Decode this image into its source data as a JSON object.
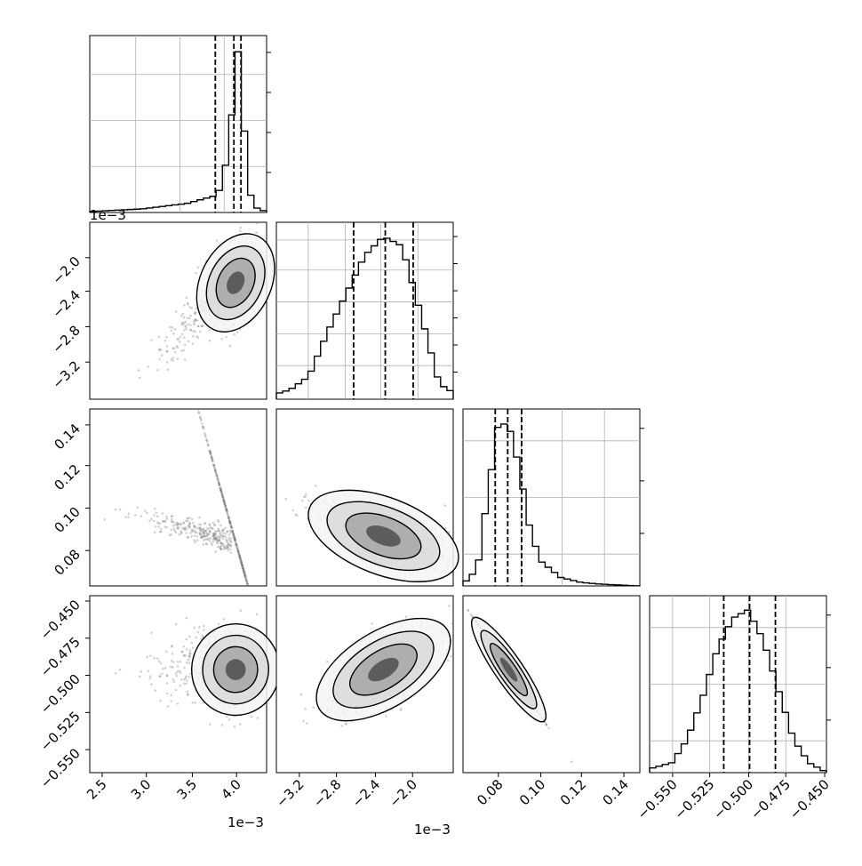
{
  "figure": {
    "type": "corner",
    "parameters": 4,
    "colors": {
      "ink": "#000000",
      "grid": "#b0b0b0",
      "samples": "#7f7f7f"
    }
  },
  "chart_data": [
    {
      "type": "line",
      "panel": "hist-0",
      "title": "",
      "x": [
        2.4,
        3.0,
        3.5,
        3.8,
        3.9,
        4.0,
        4.05,
        4.1,
        4.15,
        4.2,
        4.25,
        4.3,
        4.4
      ],
      "y": [
        0.005,
        0.02,
        0.05,
        0.09,
        0.14,
        0.48,
        0.9,
        0.88,
        0.45,
        0.13,
        0.05,
        0.02,
        0.005
      ],
      "quantiles": [
        3.82,
        4.03,
        4.11
      ],
      "xlim": [
        2.4,
        4.4
      ],
      "offset_label": "1e−3",
      "yticks": [
        "",
        "",
        "",
        ""
      ]
    },
    {
      "type": "line",
      "panel": "hist-1",
      "title": "",
      "x": [
        -3.6,
        -3.4,
        -3.2,
        -3.0,
        -2.8,
        -2.6,
        -2.4,
        -2.2,
        -2.0,
        -1.8,
        -1.6
      ],
      "y": [
        0.02,
        0.05,
        0.12,
        0.35,
        0.55,
        0.75,
        0.85,
        0.8,
        0.45,
        0.08,
        0.02
      ],
      "quantiles": [
        -2.72,
        -2.38,
        -2.08
      ],
      "xlim": [
        -3.55,
        -1.65
      ],
      "offset_label": "1e−3",
      "yticks": [
        "",
        "",
        "",
        "",
        "",
        ""
      ]
    },
    {
      "type": "line",
      "panel": "hist-2",
      "title": "",
      "x": [
        0.063,
        0.07,
        0.075,
        0.08,
        0.085,
        0.09,
        0.095,
        0.1,
        0.11,
        0.12,
        0.13,
        0.148
      ],
      "y": [
        0.01,
        0.1,
        0.55,
        0.96,
        0.95,
        0.7,
        0.35,
        0.15,
        0.05,
        0.02,
        0.01,
        0.0
      ],
      "quantiles": [
        0.0785,
        0.0845,
        0.0912
      ],
      "xlim": [
        0.063,
        0.148
      ],
      "xticks": [
        "0.08",
        "0.10",
        "0.12",
        "0.14"
      ],
      "yticks": [
        "",
        "",
        ""
      ]
    },
    {
      "type": "line",
      "panel": "hist-3",
      "title": "",
      "x": [
        -0.57,
        -0.55,
        -0.54,
        -0.53,
        -0.52,
        -0.51,
        -0.5,
        -0.49,
        -0.48,
        -0.47,
        -0.46,
        -0.45
      ],
      "y": [
        0.01,
        0.06,
        0.2,
        0.45,
        0.75,
        0.93,
        0.98,
        0.8,
        0.5,
        0.2,
        0.06,
        0.01
      ],
      "quantiles": [
        -0.516,
        -0.499,
        -0.482
      ],
      "xlim": [
        -0.5648,
        -0.4484
      ],
      "xticks": [
        "−0.550",
        "−0.525",
        "−0.500",
        "−0.475",
        "−0.450"
      ],
      "yticks": [
        "",
        "",
        ""
      ]
    },
    {
      "type": "scatter",
      "panel": "2d-1-0",
      "x_label": "",
      "y_label": "",
      "mode": [
        4.05,
        -2.3
      ],
      "xlim": [
        2.4,
        4.4
      ],
      "ylim": [
        -3.55,
        -1.65
      ],
      "yticks": [
        "−2.0",
        "−2.4",
        "−2.8",
        "−3.2"
      ],
      "offset_label": "1e−3"
    },
    {
      "type": "scatter",
      "panel": "2d-2-0",
      "mode": [
        4.05,
        0.084
      ],
      "xlim": [
        2.4,
        4.4
      ],
      "ylim": [
        0.063,
        0.148
      ],
      "yticks": [
        "0.14",
        "0.12",
        "0.10",
        "0.08"
      ]
    },
    {
      "type": "scatter",
      "panel": "2d-2-1",
      "mode": [
        -2.4,
        0.087
      ],
      "xlim": [
        -3.55,
        -1.65
      ],
      "ylim": [
        0.063,
        0.148
      ]
    },
    {
      "type": "scatter",
      "panel": "2d-3-0",
      "mode": [
        4.05,
        -0.497
      ],
      "xlim": [
        2.4,
        4.4
      ],
      "ylim": [
        -0.5648,
        -0.4484
      ],
      "xticks": [
        "2.5",
        "3.0",
        "3.5",
        "4.0"
      ],
      "yticks": [
        "−0.450",
        "−0.475",
        "−0.500",
        "−0.525",
        "−0.550"
      ],
      "offset_label": "1e−3"
    },
    {
      "type": "scatter",
      "panel": "2d-3-1",
      "mode": [
        -2.4,
        -0.497
      ],
      "xlim": [
        -3.55,
        -1.65
      ],
      "ylim": [
        -0.5648,
        -0.4484
      ],
      "xticks": [
        "−3.2",
        "−2.8",
        "−2.4",
        "−2.0"
      ],
      "offset_label": "1e−3"
    },
    {
      "type": "scatter",
      "panel": "2d-3-2",
      "mode": [
        0.085,
        -0.497
      ],
      "xlim": [
        0.063,
        0.148
      ],
      "ylim": [
        -0.5648,
        -0.4484
      ]
    }
  ]
}
